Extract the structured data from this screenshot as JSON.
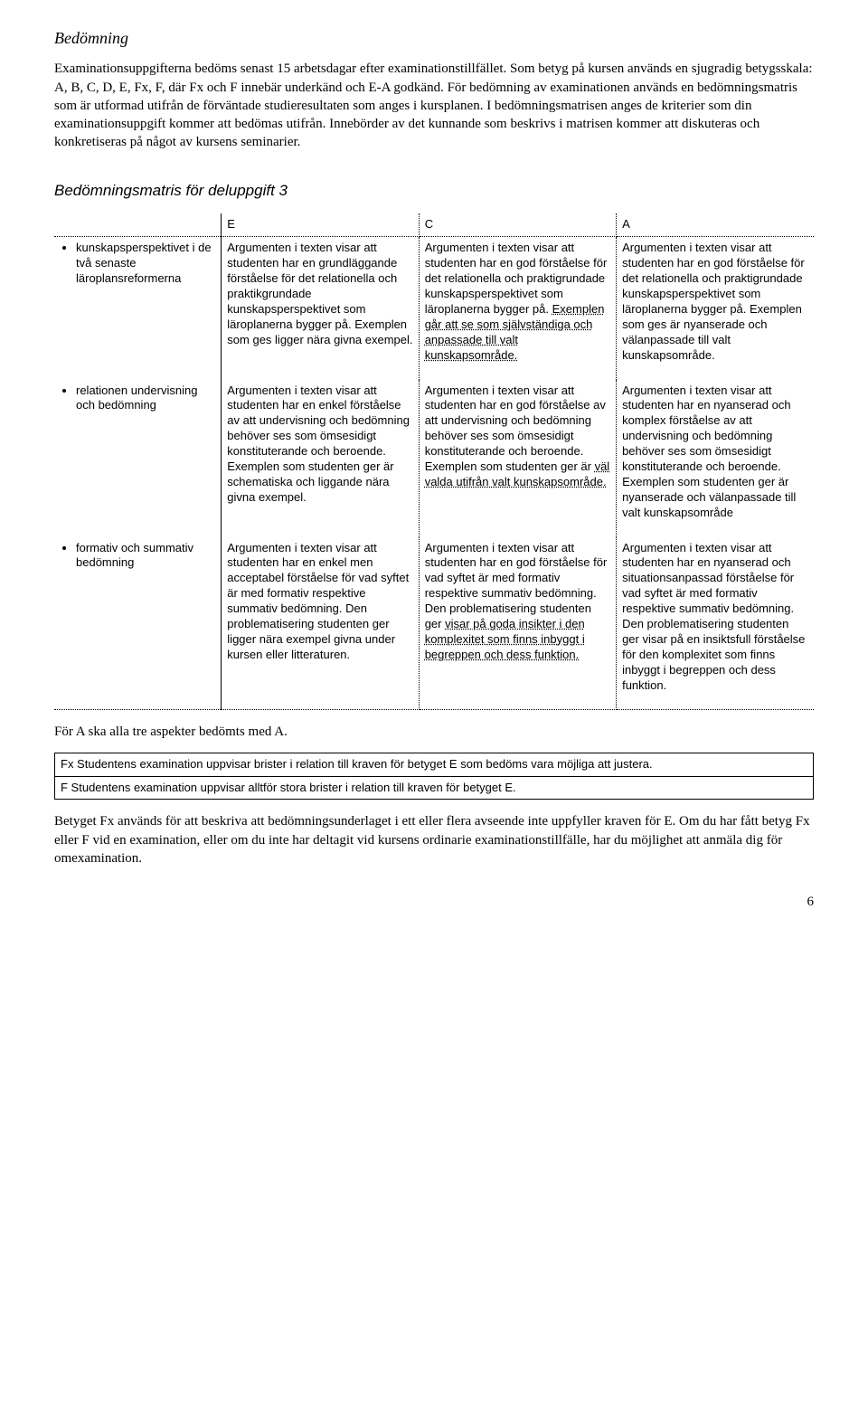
{
  "heading_bedomning": "Bedömning",
  "intro_paragraph": "Examinationsuppgifterna bedöms senast 15 arbetsdagar efter examinationstillfället. Som betyg på kursen används en sjugradig betygsskala: A, B, C, D, E, Fx, F, där Fx och F innebär underkänd och E-A godkänd. För bedömning av examinationen används en bedömningsmatris som är utformad utifrån de förväntade studieresultaten som anges i kursplanen. I bedömningsmatrisen anges de kriterier som din examinationsuppgift kommer att bedömas utifrån. Innebörder av det kunnande som beskrivs i matrisen kommer att diskuteras och konkretiseras på något av kursens seminarier.",
  "matrix_heading": "Bedömningsmatris för deluppgift 3",
  "column_labels": {
    "e": "E",
    "c": "C",
    "a": "A"
  },
  "rows": [
    {
      "aspect": "kunskapsperspektivet i de två senaste läroplansreformerna",
      "e": "Argumenten i texten visar att studenten har en grundläggande förståelse för det relationella och praktikgrundade kunskapsperspektivet som läroplanerna bygger på. Exemplen som ges ligger nära givna exempel.",
      "c_pre": "Argumenten i texten visar att studenten har en god förståelse för det relationella och praktigrundade kunskapsperspektivet som läroplanerna bygger på. ",
      "c_ul": "Exemplen går att se som självständiga och anpassade till valt kunskapsområde.",
      "a": "Argumenten i texten visar att studenten har en god förståelse för det relationella och praktigrundade kunskapsperspektivet som läroplanerna bygger på. Exemplen som ges är nyanserade och välanpassade till valt kunskapsområde."
    },
    {
      "aspect": "relationen undervisning och bedömning",
      "e": "Argumenten i texten visar att studenten har en enkel förståelse av att undervisning och bedömning behöver ses som ömsesidigt konstituterande och beroende. Exemplen som studenten ger är schematiska och liggande nära givna exempel.",
      "c_pre": "Argumenten i texten visar att studenten har en god förståelse av att undervisning och bedömning behöver ses som ömsesidigt konstituterande och beroende. Exemplen som studenten ger är ",
      "c_ul": "väl valda utifrån valt kunskapsområde.",
      "a": "Argumenten i texten visar att studenten har en nyanserad och komplex förståelse av att undervisning och bedömning behöver ses som ömsesidigt konstituterande och beroende. Exemplen som studenten ger är nyanserade och välanpassade till valt kunskapsområde"
    },
    {
      "aspect": "formativ och summativ bedömning",
      "e": "Argumenten i texten visar att studenten har en enkel men acceptabel förståelse för vad syftet är med formativ respektive summativ bedömning. Den problematisering studenten ger ligger nära exempel givna under kursen eller litteraturen.",
      "c_pre": "Argumenten i texten visar att studenten har en god förståelse för vad syftet är med formativ respektive summativ bedömning. Den problematisering studenten ger ",
      "c_ul": "visar på goda insikter i den komplexitet som finns inbyggt i begreppen och dess funktion.",
      "a": "Argumenten i texten visar att studenten har en nyanserad och situationsanpassad förståelse för vad syftet är med formativ respektive summativ bedömning. Den problematisering studenten ger visar på en insiktsfull förståelse för den komplexitet som finns inbyggt i begreppen och dess funktion."
    }
  ],
  "note_three_aspects": "För A ska alla tre aspekter bedömts med A.",
  "fx_row": "Fx Studentens examination uppvisar brister i relation till kraven för betyget E som bedöms vara möjliga att justera.",
  "f_row": "F Studentens examination uppvisar alltför stora brister i relation till kraven för betyget E.",
  "closing_paragraph": "Betyget Fx används för att beskriva att bedömningsunderlaget i ett eller flera avseende inte uppfyller kraven för E. Om du har fått betyg Fx eller F vid en examination, eller om du inte har deltagit vid kursens ordinarie examinationstillfälle, har du möjlighet att anmäla dig för omexamination.",
  "page_number": "6"
}
